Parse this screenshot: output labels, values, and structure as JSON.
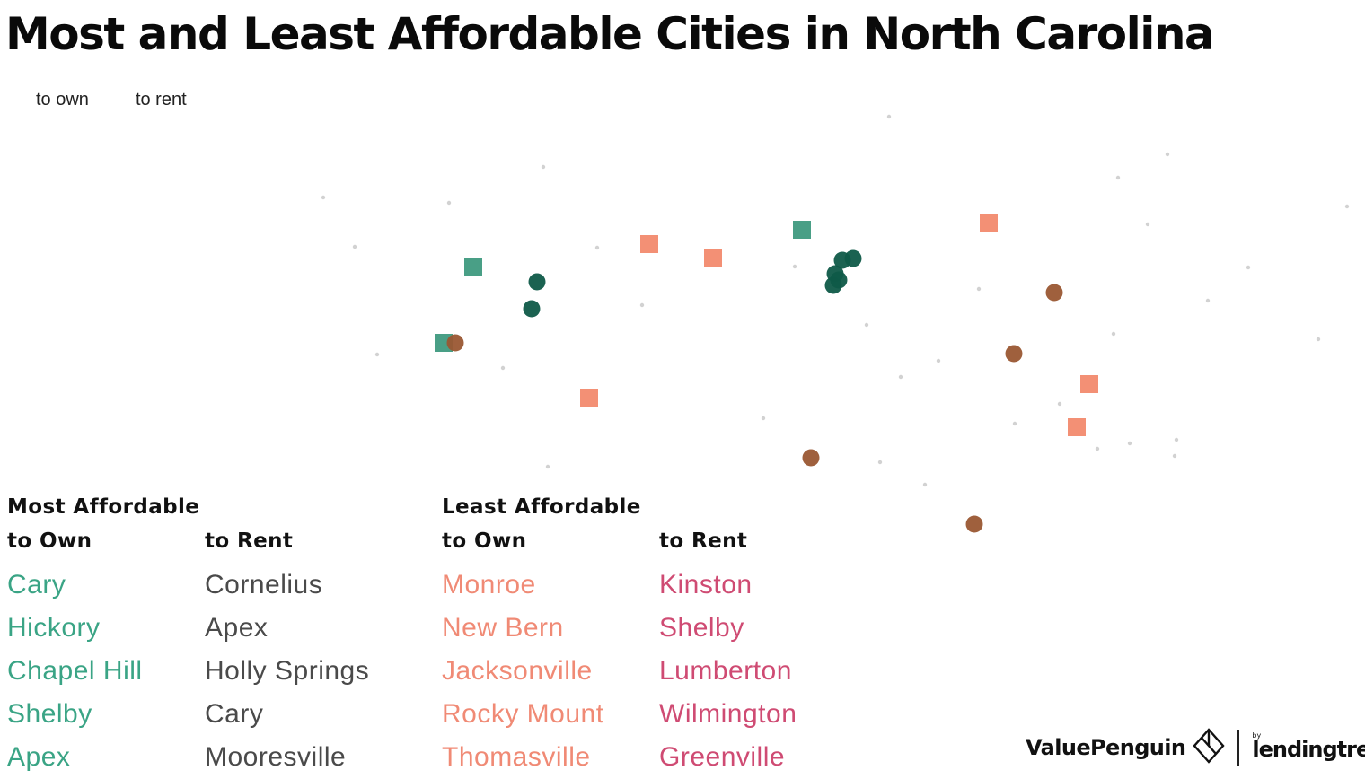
{
  "title": "Most and Least Affordable Cities in North Carolina",
  "legend": {
    "own_label": "to own",
    "rent_label": "to rent"
  },
  "colors": {
    "most_own": "#3aa485",
    "most_rent": "#4a4a4a",
    "least_own": "#f08a75",
    "least_rent": "#cf4b73",
    "dot_dark_green": "#0f5a48",
    "square_green": "#3f9a80",
    "square_salmon": "#f28a6e",
    "dot_brown": "#9a5733",
    "basemap_dots": "#d2d2d2"
  },
  "map": {
    "markers": [
      {
        "shape": "square",
        "color": "square_green"
      },
      {
        "shape": "square",
        "color": "square_green"
      },
      {
        "shape": "square",
        "color": "square_green"
      },
      {
        "shape": "circle",
        "color": "dot_dark_green"
      },
      {
        "shape": "circle",
        "color": "dot_dark_green"
      },
      {
        "shape": "circle",
        "color": "dot_dark_green"
      },
      {
        "shape": "circle",
        "color": "dot_dark_green"
      },
      {
        "shape": "circle",
        "color": "dot_dark_green"
      },
      {
        "shape": "circle",
        "color": "dot_dark_green"
      },
      {
        "shape": "circle",
        "color": "dot_dark_green"
      },
      {
        "shape": "square",
        "color": "square_salmon"
      },
      {
        "shape": "square",
        "color": "square_salmon"
      },
      {
        "shape": "square",
        "color": "square_salmon"
      },
      {
        "shape": "square",
        "color": "square_salmon"
      },
      {
        "shape": "square",
        "color": "square_salmon"
      },
      {
        "shape": "square",
        "color": "square_salmon"
      },
      {
        "shape": "circle",
        "color": "dot_brown"
      },
      {
        "shape": "circle",
        "color": "dot_brown"
      },
      {
        "shape": "circle",
        "color": "dot_brown"
      },
      {
        "shape": "circle",
        "color": "dot_brown"
      },
      {
        "shape": "circle",
        "color": "dot_brown"
      }
    ]
  },
  "most_affordable": {
    "heading": "Most Affordable",
    "own_heading": "to Own",
    "rent_heading": "to Rent",
    "own": [
      "Cary",
      "Hickory",
      "Chapel Hill",
      "Shelby",
      "Apex"
    ],
    "rent": [
      "Cornelius",
      "Apex",
      "Holly Springs",
      "Cary",
      "Mooresville"
    ]
  },
  "least_affordable": {
    "heading": "Least Affordable",
    "own_heading": "to Own",
    "rent_heading": "to Rent",
    "own": [
      "Monroe",
      "New Bern",
      "Jacksonville",
      "Rocky Mount",
      "Thomasville"
    ],
    "rent": [
      "Kinston",
      "Shelby",
      "Lumberton",
      "Wilmington",
      "Greenville"
    ]
  },
  "brand": {
    "valuepenguin": "ValuePenguin",
    "by": "by",
    "lendingtree": "lendingtree"
  }
}
